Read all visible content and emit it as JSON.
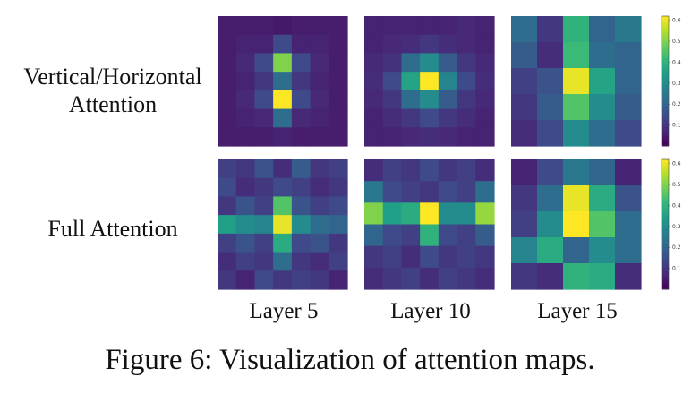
{
  "row_labels": [
    "Vertical/Horizontal Attention",
    "Full Attention"
  ],
  "row_label_lines": [
    [
      "Vertical/Horizontal",
      "Attention"
    ],
    [
      "Full Attention"
    ]
  ],
  "col_labels": [
    "Layer 5",
    "Layer 10",
    "Layer 15"
  ],
  "caption": "Figure 6: Visualization of attention maps.",
  "colormap": [
    "#440154",
    "#482878",
    "#3e4989",
    "#31688e",
    "#26828e",
    "#1f9e89",
    "#35b779",
    "#6ece58",
    "#b5de2b",
    "#fde725"
  ],
  "chart_data": {
    "type": "heatmap",
    "rows": [
      "Vertical/Horizontal Attention",
      "Full Attention"
    ],
    "columns": [
      "Layer 5",
      "Layer 10",
      "Layer 15"
    ],
    "colorbar": {
      "ticks": [
        0.1,
        0.2,
        0.3,
        0.4,
        0.5,
        0.6
      ],
      "vmin": 0.0,
      "vmax": 0.62
    },
    "maps": [
      [
        [
          [
            0.05,
            0.05,
            0.05,
            0.04,
            0.05,
            0.05,
            0.05
          ],
          [
            0.05,
            0.06,
            0.06,
            0.14,
            0.06,
            0.06,
            0.05
          ],
          [
            0.05,
            0.07,
            0.14,
            0.5,
            0.14,
            0.07,
            0.05
          ],
          [
            0.05,
            0.06,
            0.1,
            0.22,
            0.1,
            0.06,
            0.05
          ],
          [
            0.05,
            0.07,
            0.14,
            0.62,
            0.14,
            0.07,
            0.05
          ],
          [
            0.05,
            0.06,
            0.07,
            0.22,
            0.07,
            0.06,
            0.05
          ],
          [
            0.05,
            0.05,
            0.05,
            0.06,
            0.05,
            0.05,
            0.05
          ]
        ],
        [
          [
            0.06,
            0.06,
            0.06,
            0.06,
            0.06,
            0.07,
            0.06
          ],
          [
            0.06,
            0.07,
            0.08,
            0.1,
            0.08,
            0.07,
            0.06
          ],
          [
            0.07,
            0.09,
            0.22,
            0.3,
            0.18,
            0.1,
            0.07
          ],
          [
            0.08,
            0.14,
            0.36,
            0.62,
            0.28,
            0.14,
            0.08
          ],
          [
            0.07,
            0.1,
            0.22,
            0.3,
            0.18,
            0.1,
            0.07
          ],
          [
            0.06,
            0.08,
            0.1,
            0.14,
            0.1,
            0.08,
            0.06
          ],
          [
            0.06,
            0.06,
            0.07,
            0.08,
            0.07,
            0.06,
            0.06
          ]
        ],
        [
          [
            0.22,
            0.1,
            0.4,
            0.2,
            0.25
          ],
          [
            0.18,
            0.08,
            0.42,
            0.22,
            0.2
          ],
          [
            0.12,
            0.16,
            0.6,
            0.36,
            0.2
          ],
          [
            0.1,
            0.18,
            0.45,
            0.3,
            0.18
          ],
          [
            0.08,
            0.14,
            0.3,
            0.22,
            0.14
          ]
        ]
      ],
      [
        [
          [
            0.12,
            0.1,
            0.16,
            0.08,
            0.18,
            0.1,
            0.12
          ],
          [
            0.14,
            0.08,
            0.1,
            0.14,
            0.12,
            0.08,
            0.1
          ],
          [
            0.1,
            0.16,
            0.12,
            0.45,
            0.16,
            0.12,
            0.14
          ],
          [
            0.35,
            0.3,
            0.28,
            0.6,
            0.3,
            0.22,
            0.2
          ],
          [
            0.12,
            0.16,
            0.12,
            0.38,
            0.14,
            0.16,
            0.1
          ],
          [
            0.08,
            0.12,
            0.1,
            0.22,
            0.1,
            0.08,
            0.12
          ],
          [
            0.1,
            0.06,
            0.14,
            0.1,
            0.12,
            0.1,
            0.06
          ]
        ],
        [
          [
            0.08,
            0.12,
            0.1,
            0.14,
            0.1,
            0.12,
            0.08
          ],
          [
            0.25,
            0.14,
            0.12,
            0.1,
            0.14,
            0.12,
            0.22
          ],
          [
            0.5,
            0.35,
            0.38,
            0.62,
            0.3,
            0.3,
            0.52
          ],
          [
            0.2,
            0.14,
            0.12,
            0.4,
            0.14,
            0.12,
            0.18
          ],
          [
            0.1,
            0.12,
            0.08,
            0.14,
            0.1,
            0.12,
            0.1
          ],
          [
            0.08,
            0.1,
            0.12,
            0.08,
            0.12,
            0.1,
            0.08
          ]
        ],
        [
          [
            0.06,
            0.14,
            0.25,
            0.2,
            0.06
          ],
          [
            0.1,
            0.22,
            0.6,
            0.38,
            0.16
          ],
          [
            0.12,
            0.3,
            0.62,
            0.45,
            0.22
          ],
          [
            0.28,
            0.38,
            0.2,
            0.3,
            0.22
          ],
          [
            0.1,
            0.08,
            0.4,
            0.38,
            0.08
          ]
        ]
      ]
    ]
  }
}
